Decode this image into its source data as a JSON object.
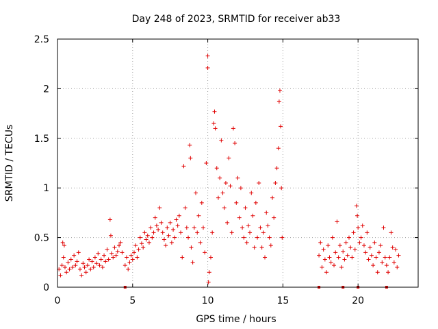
{
  "chart_data": {
    "type": "scatter",
    "title": "Day 248 of 2023, SRMTID for receiver ab33",
    "xlabel": "GPS time / hours",
    "ylabel": "SRMTID / TECUs",
    "xlim": [
      0,
      24
    ],
    "ylim": [
      0,
      2.5
    ],
    "x_ticks": [
      "0",
      "5",
      "10",
      "15",
      "20"
    ],
    "y_ticks": [
      "0",
      "0.5",
      "1",
      "1.5",
      "2",
      "2.5"
    ],
    "grid": true,
    "marker": "plus",
    "color": "#e00000",
    "series": [
      {
        "name": "SRMTID",
        "points": [
          [
            0.1,
            0.18
          ],
          [
            0.2,
            0.12
          ],
          [
            0.3,
            0.22
          ],
          [
            0.35,
            0.45
          ],
          [
            0.4,
            0.3
          ],
          [
            0.45,
            0.42
          ],
          [
            0.5,
            0.2
          ],
          [
            0.6,
            0.15
          ],
          [
            0.7,
            0.25
          ],
          [
            0.8,
            0.18
          ],
          [
            0.9,
            0.28
          ],
          [
            1.0,
            0.2
          ],
          [
            1.1,
            0.32
          ],
          [
            1.2,
            0.22
          ],
          [
            1.3,
            0.26
          ],
          [
            1.4,
            0.35
          ],
          [
            1.5,
            0.18
          ],
          [
            1.6,
            0.12
          ],
          [
            1.7,
            0.24
          ],
          [
            1.8,
            0.2
          ],
          [
            1.9,
            0.15
          ],
          [
            2.0,
            0.22
          ],
          [
            2.1,
            0.28
          ],
          [
            2.2,
            0.18
          ],
          [
            2.3,
            0.26
          ],
          [
            2.4,
            0.2
          ],
          [
            2.5,
            0.3
          ],
          [
            2.6,
            0.24
          ],
          [
            2.7,
            0.34
          ],
          [
            2.8,
            0.22
          ],
          [
            2.9,
            0.28
          ],
          [
            3.0,
            0.2
          ],
          [
            3.1,
            0.32
          ],
          [
            3.2,
            0.26
          ],
          [
            3.3,
            0.38
          ],
          [
            3.4,
            0.28
          ],
          [
            3.5,
            0.68
          ],
          [
            3.55,
            0.52
          ],
          [
            3.6,
            0.34
          ],
          [
            3.7,
            0.3
          ],
          [
            3.8,
            0.4
          ],
          [
            3.9,
            0.32
          ],
          [
            4.0,
            0.36
          ],
          [
            4.1,
            0.42
          ],
          [
            4.2,
            0.45
          ],
          [
            4.3,
            0.35
          ],
          [
            4.5,
            0.22
          ],
          [
            4.6,
            0.3
          ],
          [
            4.7,
            0.18
          ],
          [
            4.8,
            0.25
          ],
          [
            4.9,
            0.32
          ],
          [
            5.0,
            0.28
          ],
          [
            5.1,
            0.35
          ],
          [
            5.2,
            0.42
          ],
          [
            5.3,
            0.3
          ],
          [
            5.4,
            0.38
          ],
          [
            5.5,
            0.5
          ],
          [
            5.6,
            0.44
          ],
          [
            5.7,
            0.4
          ],
          [
            5.8,
            0.55
          ],
          [
            5.9,
            0.48
          ],
          [
            6.0,
            0.52
          ],
          [
            6.1,
            0.45
          ],
          [
            6.2,
            0.6
          ],
          [
            6.3,
            0.5
          ],
          [
            6.4,
            0.55
          ],
          [
            6.5,
            0.7
          ],
          [
            6.6,
            0.62
          ],
          [
            6.7,
            0.58
          ],
          [
            6.8,
            0.8
          ],
          [
            6.9,
            0.65
          ],
          [
            7.0,
            0.55
          ],
          [
            7.1,
            0.48
          ],
          [
            7.2,
            0.42
          ],
          [
            7.3,
            0.6
          ],
          [
            7.4,
            0.52
          ],
          [
            7.5,
            0.65
          ],
          [
            7.6,
            0.45
          ],
          [
            7.7,
            0.58
          ],
          [
            7.8,
            0.5
          ],
          [
            7.9,
            0.68
          ],
          [
            8.0,
            0.62
          ],
          [
            8.1,
            0.72
          ],
          [
            8.2,
            0.55
          ],
          [
            8.3,
            0.3
          ],
          [
            8.4,
            1.22
          ],
          [
            8.5,
            0.8
          ],
          [
            8.6,
            0.6
          ],
          [
            8.7,
            0.5
          ],
          [
            8.8,
            1.43
          ],
          [
            8.85,
            1.3
          ],
          [
            8.9,
            0.4
          ],
          [
            9.0,
            0.25
          ],
          [
            9.1,
            0.6
          ],
          [
            9.2,
            0.95
          ],
          [
            9.3,
            0.55
          ],
          [
            9.4,
            0.72
          ],
          [
            9.5,
            0.45
          ],
          [
            9.6,
            0.85
          ],
          [
            9.7,
            0.6
          ],
          [
            9.8,
            0.35
          ],
          [
            9.9,
            1.25
          ],
          [
            10.0,
            2.33
          ],
          [
            10.0,
            2.21
          ],
          [
            10.05,
            0.05
          ],
          [
            10.1,
            0.15
          ],
          [
            10.2,
            0.3
          ],
          [
            10.3,
            0.55
          ],
          [
            10.4,
            1.65
          ],
          [
            10.45,
            1.77
          ],
          [
            10.5,
            1.6
          ],
          [
            10.6,
            1.2
          ],
          [
            10.7,
            0.9
          ],
          [
            10.8,
            1.1
          ],
          [
            10.9,
            1.48
          ],
          [
            11.0,
            0.95
          ],
          [
            11.1,
            0.8
          ],
          [
            11.2,
            1.05
          ],
          [
            11.3,
            0.65
          ],
          [
            11.4,
            1.3
          ],
          [
            11.5,
            1.02
          ],
          [
            11.6,
            0.55
          ],
          [
            11.7,
            1.6
          ],
          [
            11.8,
            1.45
          ],
          [
            11.9,
            0.85
          ],
          [
            12.0,
            1.1
          ],
          [
            12.1,
            0.7
          ],
          [
            12.2,
            1.0
          ],
          [
            12.3,
            0.6
          ],
          [
            12.4,
            0.5
          ],
          [
            12.5,
            0.8
          ],
          [
            12.6,
            0.45
          ],
          [
            12.7,
            0.62
          ],
          [
            12.8,
            0.55
          ],
          [
            12.9,
            0.95
          ],
          [
            13.0,
            0.72
          ],
          [
            13.1,
            0.4
          ],
          [
            13.2,
            0.85
          ],
          [
            13.3,
            0.5
          ],
          [
            13.4,
            1.05
          ],
          [
            13.5,
            0.6
          ],
          [
            13.6,
            0.4
          ],
          [
            13.7,
            0.55
          ],
          [
            13.8,
            0.3
          ],
          [
            13.9,
            0.75
          ],
          [
            14.0,
            0.62
          ],
          [
            14.1,
            0.5
          ],
          [
            14.2,
            0.42
          ],
          [
            14.3,
            0.9
          ],
          [
            14.4,
            0.7
          ],
          [
            14.5,
            1.05
          ],
          [
            14.6,
            1.2
          ],
          [
            14.7,
            1.4
          ],
          [
            14.75,
            1.87
          ],
          [
            14.8,
            1.98
          ],
          [
            14.85,
            1.62
          ],
          [
            14.9,
            1.0
          ],
          [
            14.95,
            0.5
          ],
          [
            17.4,
            0.32
          ],
          [
            17.5,
            0.45
          ],
          [
            17.6,
            0.2
          ],
          [
            17.7,
            0.38
          ],
          [
            17.8,
            0.28
          ],
          [
            17.9,
            0.15
          ],
          [
            18.0,
            0.42
          ],
          [
            18.1,
            0.3
          ],
          [
            18.2,
            0.25
          ],
          [
            18.3,
            0.5
          ],
          [
            18.4,
            0.22
          ],
          [
            18.5,
            0.35
          ],
          [
            18.6,
            0.66
          ],
          [
            18.7,
            0.3
          ],
          [
            18.8,
            0.42
          ],
          [
            18.9,
            0.2
          ],
          [
            19.0,
            0.36
          ],
          [
            19.1,
            0.28
          ],
          [
            19.2,
            0.45
          ],
          [
            19.3,
            0.32
          ],
          [
            19.4,
            0.5
          ],
          [
            19.5,
            0.4
          ],
          [
            19.6,
            0.3
          ],
          [
            19.7,
            0.55
          ],
          [
            19.8,
            0.38
          ],
          [
            19.9,
            0.82
          ],
          [
            19.95,
            0.72
          ],
          [
            20.0,
            0.6
          ],
          [
            20.1,
            0.45
          ],
          [
            20.2,
            0.5
          ],
          [
            20.3,
            0.62
          ],
          [
            20.4,
            0.42
          ],
          [
            20.5,
            0.35
          ],
          [
            20.6,
            0.55
          ],
          [
            20.7,
            0.28
          ],
          [
            20.8,
            0.4
          ],
          [
            20.9,
            0.32
          ],
          [
            21.0,
            0.22
          ],
          [
            21.1,
            0.45
          ],
          [
            21.2,
            0.3
          ],
          [
            21.3,
            0.15
          ],
          [
            21.4,
            0.35
          ],
          [
            21.5,
            0.42
          ],
          [
            21.6,
            0.25
          ],
          [
            21.7,
            0.6
          ],
          [
            21.8,
            0.3
          ],
          [
            21.9,
            0.22
          ],
          [
            22.0,
            0.15
          ],
          [
            22.1,
            0.3
          ],
          [
            22.2,
            0.55
          ],
          [
            22.3,
            0.4
          ],
          [
            22.4,
            0.25
          ],
          [
            22.5,
            0.38
          ],
          [
            22.6,
            0.2
          ],
          [
            22.7,
            0.32
          ]
        ]
      }
    ],
    "baseline_markers_x": [
      4.5,
      17.4,
      19.0,
      20.0,
      21.9
    ]
  }
}
